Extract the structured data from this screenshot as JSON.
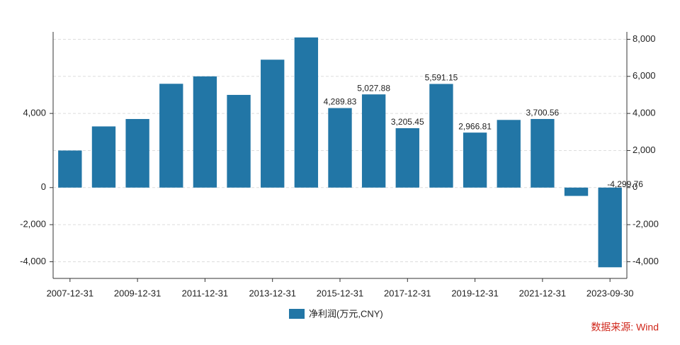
{
  "chart_data": {
    "type": "bar",
    "categories": [
      "2007-12-31",
      null,
      "2009-12-31",
      null,
      "2011-12-31",
      null,
      "2013-12-31",
      null,
      "2015-12-31",
      null,
      "2017-12-31",
      null,
      "2019-12-31",
      null,
      "2021-12-31",
      null,
      "2023-09-30"
    ],
    "series": [
      {
        "name": "净利润(万元,CNY)",
        "color": "#2276a6",
        "values": [
          2000,
          3300,
          3700,
          5600,
          6000,
          5000,
          6900,
          8100,
          4289.83,
          5027.88,
          3205.45,
          5591.15,
          2966.81,
          3650,
          3700.56,
          -450,
          -4299.76
        ],
        "value_labels": [
          null,
          null,
          null,
          null,
          null,
          null,
          null,
          null,
          "4,289.83",
          "5,027.88",
          "3,205.45",
          "5,591.15",
          "2,966.81",
          null,
          "3,700.56",
          null,
          "-4,299.76"
        ]
      }
    ],
    "ylim": [
      -4900,
      8400
    ],
    "yticks": [
      {
        "value": -4000,
        "label": "-4,000"
      },
      {
        "value": -2000,
        "label": "-2,000"
      },
      0,
      {
        "value": 4000,
        "label": "4,000"
      }
    ],
    "y2lim": [
      -4900,
      8400
    ],
    "y2ticks": [
      {
        "value": -4000,
        "label": "-4,000"
      },
      {
        "value": -2000,
        "label": "-2,000"
      },
      0,
      {
        "value": 2000,
        "label": "2,000"
      },
      {
        "value": 4000,
        "label": "4,000"
      },
      {
        "value": 6000,
        "label": "6,000"
      },
      {
        "value": 8000,
        "label": "8,000"
      }
    ],
    "grid": true,
    "legend": "bottom",
    "source": "数据来源: Wind"
  }
}
